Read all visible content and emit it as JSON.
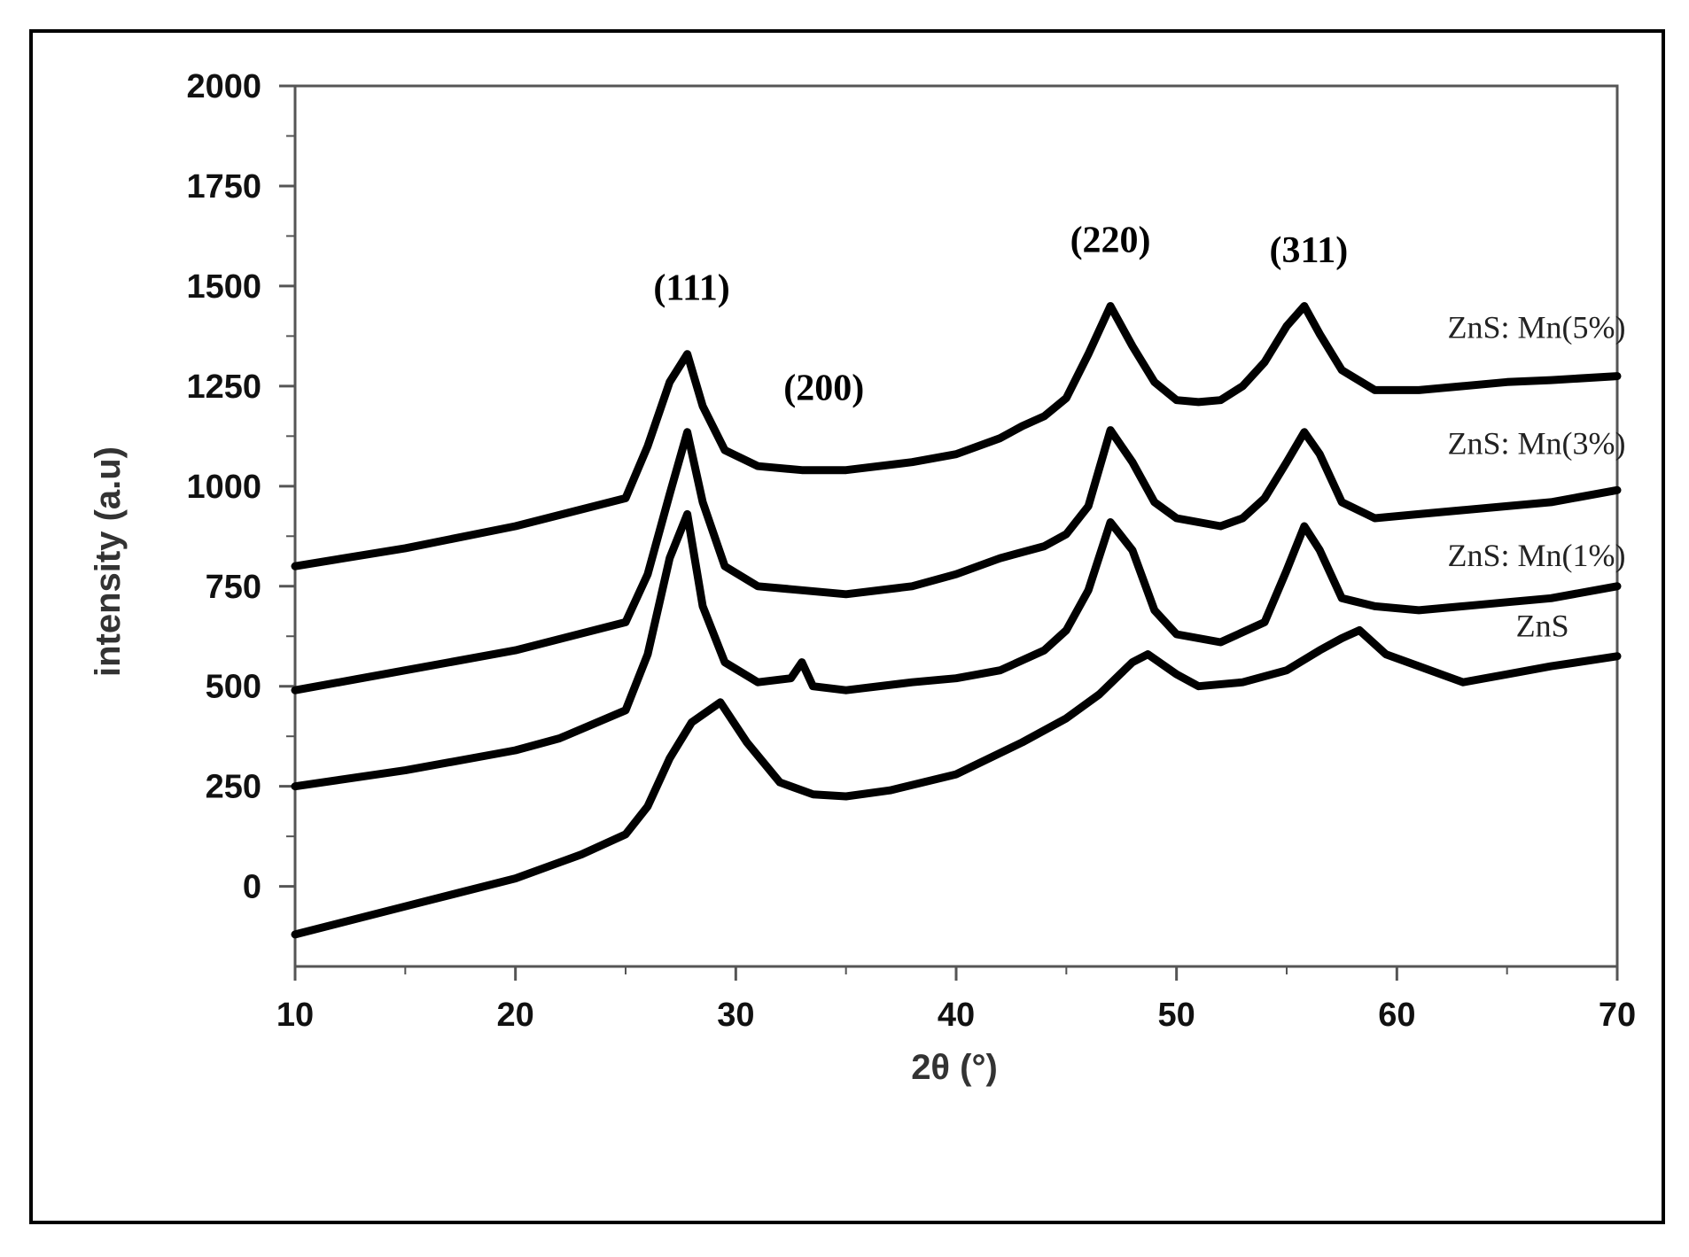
{
  "chart_data": {
    "type": "line",
    "xlabel": "2θ (°)",
    "ylabel": "intensity (a.u)",
    "xlim": [
      10,
      70
    ],
    "ylim": [
      -200,
      2000
    ],
    "xticks": [
      10,
      20,
      30,
      40,
      50,
      60,
      70
    ],
    "xtick_labels": [
      "10",
      "20",
      "30",
      "40",
      "50",
      "60",
      "70"
    ],
    "yticks": [
      0,
      250,
      500,
      750,
      1000,
      1250,
      1500,
      1750,
      2000
    ],
    "ytick_labels": [
      "0",
      "250",
      "500",
      "750",
      "1000",
      "1250",
      "1500",
      "1750",
      "2000"
    ],
    "grid": false,
    "colors": {
      "line": "#000000",
      "frame": "#000000",
      "axis": "#555555"
    },
    "annotations": [
      {
        "text": "(111)",
        "x": 28.0,
        "y": 1465
      },
      {
        "text": "(200)",
        "x": 34.0,
        "y": 1215
      },
      {
        "text": "(220)",
        "x": 47.0,
        "y": 1585
      },
      {
        "text": "(311)",
        "x": 56.0,
        "y": 1560
      }
    ],
    "series": [
      {
        "name": "ZnS: Mn(5%)",
        "label_x": 62.3,
        "label_y": 1370,
        "x": [
          10,
          15,
          20,
          25,
          26,
          27,
          27.8,
          28.5,
          29.5,
          31,
          33,
          35,
          38,
          40,
          42,
          43,
          44,
          45,
          46,
          47,
          48,
          49,
          50,
          51,
          52,
          53,
          54,
          55,
          55.8,
          56.5,
          57.5,
          59,
          61,
          63,
          65,
          67,
          70
        ],
        "y": [
          800,
          845,
          900,
          970,
          1100,
          1260,
          1330,
          1200,
          1090,
          1050,
          1040,
          1040,
          1060,
          1080,
          1120,
          1150,
          1175,
          1220,
          1330,
          1450,
          1350,
          1260,
          1215,
          1210,
          1215,
          1250,
          1310,
          1400,
          1450,
          1380,
          1290,
          1240,
          1240,
          1250,
          1260,
          1265,
          1275
        ]
      },
      {
        "name": "ZnS: Mn(3%)",
        "label_x": 62.3,
        "label_y": 1080,
        "x": [
          10,
          15,
          20,
          25,
          26,
          27,
          27.8,
          28.5,
          29.5,
          31,
          33,
          35,
          38,
          40,
          42,
          44,
          45,
          46,
          47,
          48,
          49,
          50,
          51,
          52,
          53,
          54,
          55,
          55.8,
          56.5,
          57.5,
          59,
          61,
          63,
          65,
          67,
          70
        ],
        "y": [
          490,
          540,
          590,
          660,
          780,
          980,
          1135,
          960,
          800,
          750,
          740,
          730,
          750,
          780,
          820,
          850,
          880,
          950,
          1140,
          1060,
          960,
          920,
          910,
          900,
          920,
          970,
          1060,
          1135,
          1080,
          960,
          920,
          930,
          940,
          950,
          960,
          990
        ]
      },
      {
        "name": "ZnS: Mn(1%)",
        "label_x": 62.3,
        "label_y": 800,
        "x": [
          10,
          15,
          20,
          22,
          25,
          26,
          27,
          27.8,
          28.5,
          29.5,
          31,
          32.5,
          33,
          33.5,
          35,
          38,
          40,
          42,
          44,
          45,
          46,
          47,
          48,
          49,
          50,
          52,
          54,
          55,
          55.8,
          56.5,
          57.5,
          59,
          61,
          63,
          65,
          67,
          70
        ],
        "y": [
          250,
          290,
          340,
          370,
          440,
          580,
          820,
          930,
          700,
          560,
          510,
          520,
          560,
          500,
          490,
          510,
          520,
          540,
          590,
          640,
          740,
          910,
          840,
          690,
          630,
          610,
          660,
          790,
          900,
          840,
          720,
          700,
          690,
          700,
          710,
          720,
          750
        ]
      },
      {
        "name": "ZnS",
        "label_x": 65.4,
        "label_y": 625,
        "x": [
          10,
          15,
          20,
          23,
          25,
          26,
          27,
          28,
          29.3,
          30.5,
          32,
          33.5,
          35,
          37,
          40,
          43,
          45,
          46.5,
          48,
          48.7,
          50,
          51,
          53,
          55,
          56.5,
          57.5,
          58.3,
          59.5,
          61,
          63,
          65,
          67,
          70
        ],
        "y": [
          -120,
          -50,
          20,
          80,
          130,
          200,
          320,
          410,
          460,
          360,
          260,
          230,
          225,
          240,
          280,
          360,
          420,
          480,
          560,
          580,
          530,
          500,
          510,
          540,
          590,
          620,
          640,
          580,
          550,
          510,
          530,
          550,
          575
        ]
      }
    ]
  }
}
